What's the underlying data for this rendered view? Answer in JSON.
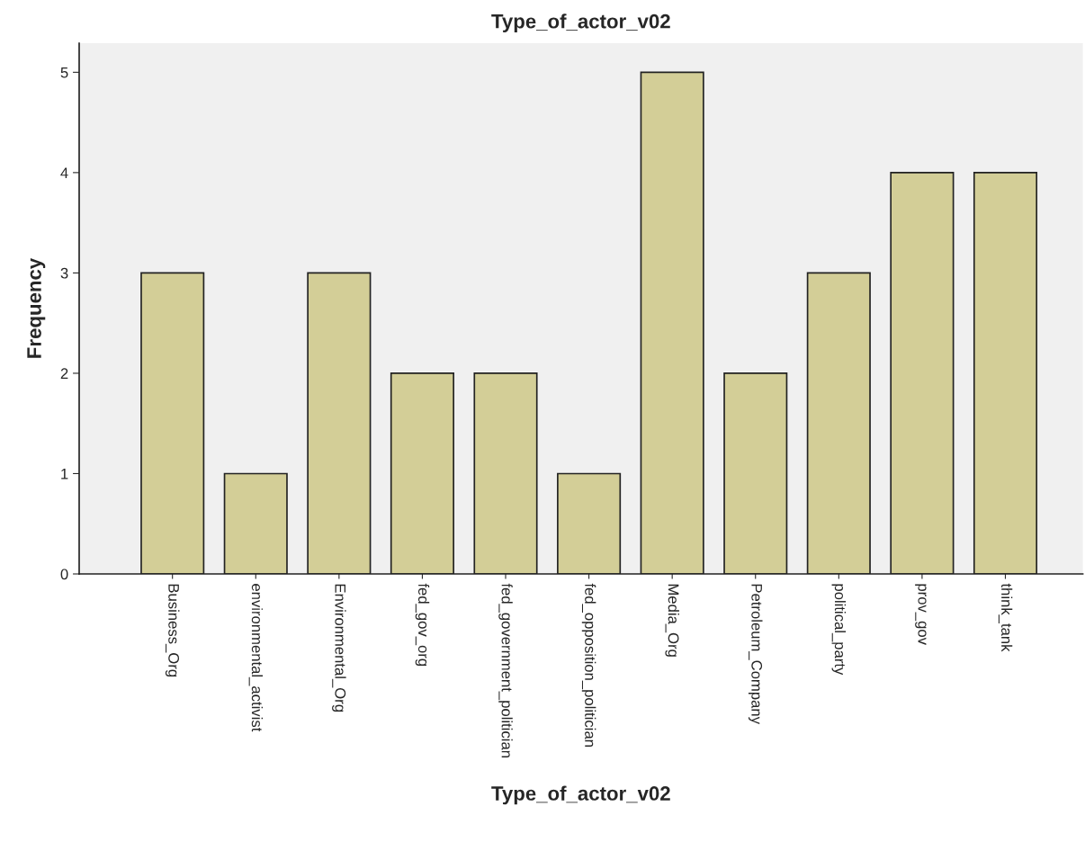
{
  "chart_data": {
    "type": "bar",
    "title": "Type_of_actor_v02",
    "xlabel": "Type_of_actor_v02",
    "ylabel": "Frequency",
    "categories": [
      "Business_Org",
      "environmental_activist",
      "Environmental_Org",
      "fed_gov_org",
      "fed_government_politician",
      "fed_opposition_politician",
      "Media_Org",
      "Petroleum_Company",
      "political_party",
      "prov_gov",
      "think_tank"
    ],
    "values": [
      3,
      1,
      3,
      2,
      2,
      1,
      5,
      2,
      3,
      4,
      4
    ],
    "color": "#d3ce97",
    "ylim": [
      0,
      5.29
    ],
    "yticks": [
      0,
      1,
      2,
      3,
      4,
      5
    ],
    "grid": false,
    "legend": false
  }
}
